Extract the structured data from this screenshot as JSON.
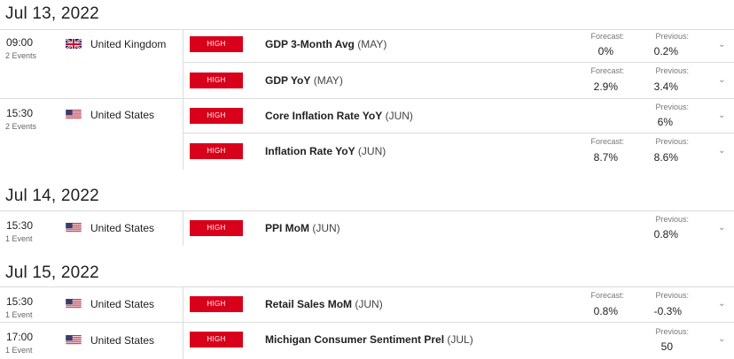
{
  "days": [
    {
      "date": "Jul 13, 2022",
      "groups": [
        {
          "time": "09:00",
          "events_count": "2 Events",
          "country": "United Kingdom",
          "flag": "uk-flag-icon",
          "events": [
            {
              "importance": "HIGH",
              "name": "GDP 3-Month Avg",
              "period": "(MAY)",
              "forecast_label": "Forecast:",
              "forecast": "0%",
              "previous_label": "Previous:",
              "previous": "0.2%"
            },
            {
              "importance": "HIGH",
              "name": "GDP YoY",
              "period": "(MAY)",
              "forecast_label": "Forecast:",
              "forecast": "2.9%",
              "previous_label": "Previous:",
              "previous": "3.4%"
            }
          ]
        },
        {
          "time": "15:30",
          "events_count": "2 Events",
          "country": "United States",
          "flag": "us-flag-icon",
          "events": [
            {
              "importance": "HIGH",
              "name": "Core Inflation Rate YoY",
              "period": "(JUN)",
              "previous_label": "Previous:",
              "previous": "6%"
            },
            {
              "importance": "HIGH",
              "name": "Inflation Rate YoY",
              "period": "(JUN)",
              "forecast_label": "Forecast:",
              "forecast": "8.7%",
              "previous_label": "Previous:",
              "previous": "8.6%"
            }
          ]
        }
      ]
    },
    {
      "date": "Jul 14, 2022",
      "groups": [
        {
          "time": "15:30",
          "events_count": "1 Event",
          "country": "United States",
          "flag": "us-flag-icon",
          "events": [
            {
              "importance": "HIGH",
              "name": "PPI MoM",
              "period": "(JUN)",
              "previous_label": "Previous:",
              "previous": "0.8%"
            }
          ]
        }
      ]
    },
    {
      "date": "Jul 15, 2022",
      "groups": [
        {
          "time": "15:30",
          "events_count": "1 Event",
          "country": "United States",
          "flag": "us-flag-icon",
          "events": [
            {
              "importance": "HIGH",
              "name": "Retail Sales MoM",
              "period": "(JUN)",
              "forecast_label": "Forecast:",
              "forecast": "0.8%",
              "previous_label": "Previous:",
              "previous": "-0.3%"
            }
          ]
        },
        {
          "time": "17:00",
          "events_count": "1 Event",
          "country": "United States",
          "flag": "us-flag-icon",
          "events": [
            {
              "importance": "HIGH",
              "name": "Michigan Consumer Sentiment Prel",
              "period": "(JUL)",
              "previous_label": "Previous:",
              "previous": "50"
            }
          ]
        }
      ]
    }
  ],
  "colors": {
    "importance_high": "#d9001b",
    "divider": "#dcdcdc"
  },
  "icons": {
    "expand": "chevron-down-icon"
  }
}
